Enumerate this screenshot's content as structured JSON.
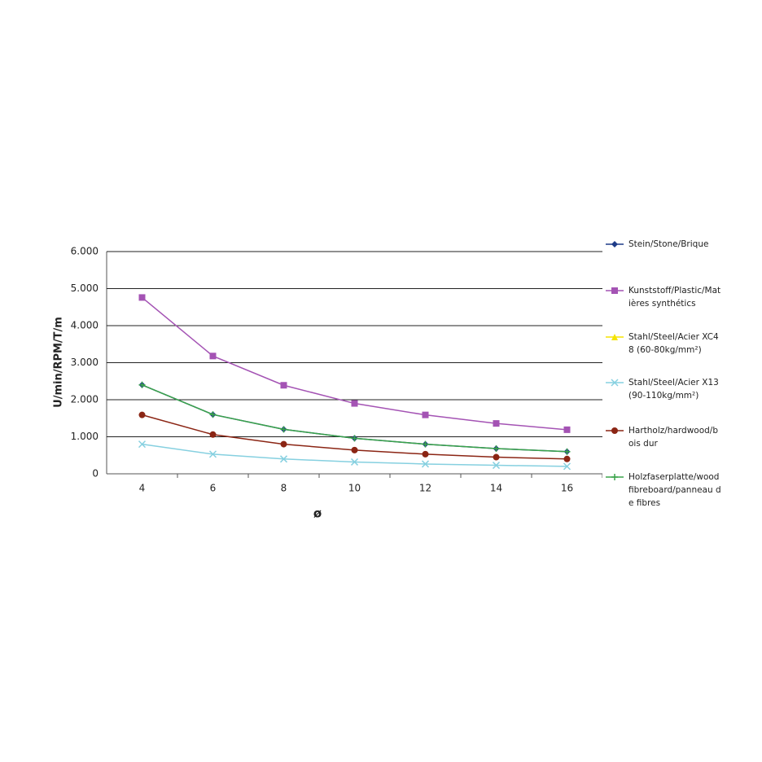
{
  "chart_data": {
    "type": "line",
    "y_label": "U/min/RPM/T/m",
    "x_label": "ø",
    "categories": [
      "4",
      "6",
      "8",
      "10",
      "12",
      "14",
      "16"
    ],
    "ylim": [
      0,
      6000
    ],
    "yticks": [
      0,
      {
        "value": 1000,
        "label": "1.000"
      },
      {
        "value": 2000,
        "label": "2.000"
      },
      {
        "value": 3000,
        "label": "3.000"
      },
      {
        "value": 4000,
        "label": "4.000"
      },
      {
        "value": 5000,
        "label": "5.000"
      },
      {
        "value": 6000,
        "label": "6.000"
      }
    ],
    "grid": true,
    "legend": "right",
    "series": [
      {
        "name": "Stein/Stone/Brique",
        "color": "#1f3c88",
        "marker": "diamond",
        "values": [
          2400,
          1600,
          1200,
          960,
          800,
          680,
          600
        ]
      },
      {
        "name": "Kunststoff/Plastic/Matières synthétics",
        "color": "#a453b4",
        "marker": "square",
        "values": [
          4760,
          3180,
          2390,
          1900,
          1590,
          1360,
          1190
        ]
      },
      {
        "name": "Stahl/Steel/Acier XC48 (60-80kg/mm²)",
        "color": "#f5e400",
        "marker": "triangle",
        "values": [
          null,
          null,
          null,
          null,
          null,
          null,
          null
        ]
      },
      {
        "name": "Stahl/Steel/Acier X13 (90-110kg/mm²)",
        "color": "#86d0e0",
        "marker": "x",
        "values": [
          800,
          530,
          400,
          320,
          265,
          230,
          200
        ]
      },
      {
        "name": "Hartholz/hardwood/bois dur",
        "color": "#8b2514",
        "marker": "circle",
        "values": [
          1590,
          1060,
          800,
          640,
          530,
          450,
          400
        ]
      },
      {
        "name": "Holzfaserplatte/wood fibreboard/panneau de fibres",
        "color": "#3aa34a",
        "marker": "plus",
        "values": [
          2400,
          1600,
          1200,
          960,
          800,
          680,
          600
        ]
      }
    ]
  }
}
